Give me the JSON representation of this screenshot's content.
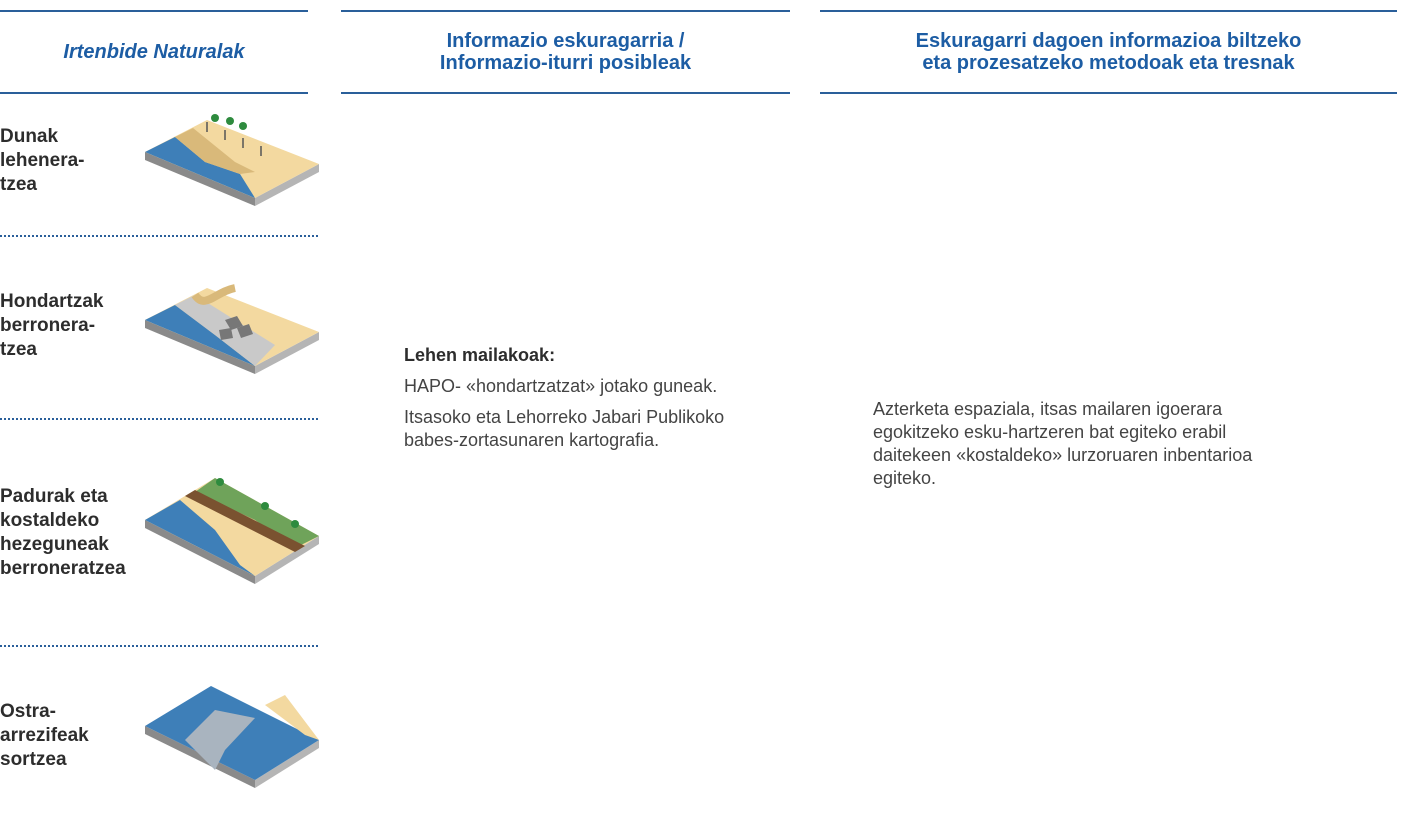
{
  "headers": [
    {
      "lines": [
        "Irtenbide Naturalak"
      ]
    },
    {
      "lines": [
        "Informazio eskuragarria /",
        "Informazio-iturri posibleak"
      ]
    },
    {
      "lines": [
        "Eskuragarri dagoen informazioa biltzeko",
        "eta prozesatzeko metodoak eta tresnak"
      ]
    }
  ],
  "solutions": [
    {
      "lines": [
        "Dunak",
        "lehenera-",
        "tzea"
      ]
    },
    {
      "lines": [
        "Hondartzak",
        "berronera-",
        "tzea"
      ]
    },
    {
      "lines": [
        "Padurak eta",
        "kostaldeko",
        "hezeguneak",
        "berroneratzea"
      ]
    },
    {
      "lines": [
        "Ostra-",
        "arrezifeak",
        "sortzea"
      ]
    }
  ],
  "sources": {
    "heading": "Lehen mailakoak:",
    "items": [
      "HAPO- «hondartzatzat» jotako guneak.",
      "Itsasoko eta Lehorreko Jabari Publikoko babes-zortasunaren kartografia."
    ]
  },
  "methods": "Azterketa espaziala, itsas mailaren igoerara egokitzeko esku-hartzeren bat egiteko erabil daitekeen «kostaldeko» lurzoruaren inbentarioa egiteko."
}
